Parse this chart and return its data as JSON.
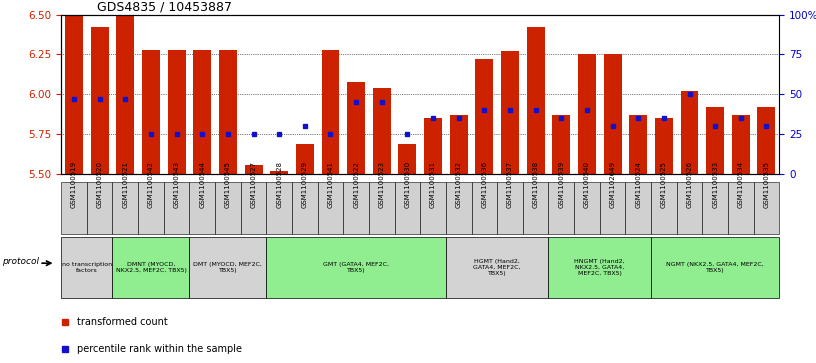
{
  "title": "GDS4835 / 10453887",
  "samples": [
    "GSM1100519",
    "GSM1100520",
    "GSM1100521",
    "GSM1100542",
    "GSM1100543",
    "GSM1100544",
    "GSM1100545",
    "GSM1100527",
    "GSM1100528",
    "GSM1100529",
    "GSM1100541",
    "GSM1100522",
    "GSM1100523",
    "GSM1100530",
    "GSM1100531",
    "GSM1100532",
    "GSM1100536",
    "GSM1100537",
    "GSM1100538",
    "GSM1100539",
    "GSM1100540",
    "GSM1102649",
    "GSM1100524",
    "GSM1100525",
    "GSM1100526",
    "GSM1100533",
    "GSM1100534",
    "GSM1100535"
  ],
  "transformed_count": [
    6.5,
    6.42,
    6.49,
    6.28,
    6.28,
    6.28,
    6.28,
    5.56,
    5.52,
    5.69,
    6.28,
    6.08,
    6.04,
    5.69,
    5.85,
    5.87,
    6.22,
    6.27,
    6.42,
    5.87,
    6.25,
    6.25,
    5.87,
    5.85,
    6.02,
    5.92,
    5.87,
    5.92
  ],
  "percentile_rank": [
    47,
    47,
    47,
    25,
    25,
    25,
    25,
    25,
    25,
    30,
    25,
    45,
    45,
    25,
    35,
    35,
    40,
    40,
    40,
    35,
    40,
    30,
    35,
    35,
    50,
    30,
    35,
    30
  ],
  "ylim_left": [
    5.5,
    6.5
  ],
  "ylim_right": [
    0,
    100
  ],
  "yticks_left": [
    5.5,
    5.75,
    6.0,
    6.25,
    6.5
  ],
  "yticks_right": [
    0,
    25,
    50,
    75,
    100
  ],
  "ytick_labels_right": [
    "0",
    "25",
    "50",
    "75",
    "100%"
  ],
  "bar_color": "#cc2200",
  "dot_color": "#1111cc",
  "grid_color": "#000000",
  "bg_color": "#ffffff",
  "protocol_groups": [
    {
      "label": "no transcription\nfactors",
      "start": 0,
      "end": 2,
      "bg": "#d3d3d3"
    },
    {
      "label": "DMNT (MYOCD,\nNKX2.5, MEF2C, TBX5)",
      "start": 2,
      "end": 5,
      "bg": "#90ee90"
    },
    {
      "label": "DMT (MYOCD, MEF2C,\nTBX5)",
      "start": 5,
      "end": 8,
      "bg": "#d3d3d3"
    },
    {
      "label": "GMT (GATA4, MEF2C,\nTBX5)",
      "start": 8,
      "end": 15,
      "bg": "#90ee90"
    },
    {
      "label": "HGMT (Hand2,\nGATA4, MEF2C,\nTBX5)",
      "start": 15,
      "end": 19,
      "bg": "#d3d3d3"
    },
    {
      "label": "HNGMT (Hand2,\nNKX2.5, GATA4,\nMEF2C, TBX5)",
      "start": 19,
      "end": 23,
      "bg": "#90ee90"
    },
    {
      "label": "NGMT (NKX2.5, GATA4, MEF2C,\nTBX5)",
      "start": 23,
      "end": 28,
      "bg": "#90ee90"
    }
  ],
  "legend_items": [
    {
      "label": "transformed count",
      "color": "#cc2200"
    },
    {
      "label": "percentile rank within the sample",
      "color": "#1111cc"
    }
  ]
}
